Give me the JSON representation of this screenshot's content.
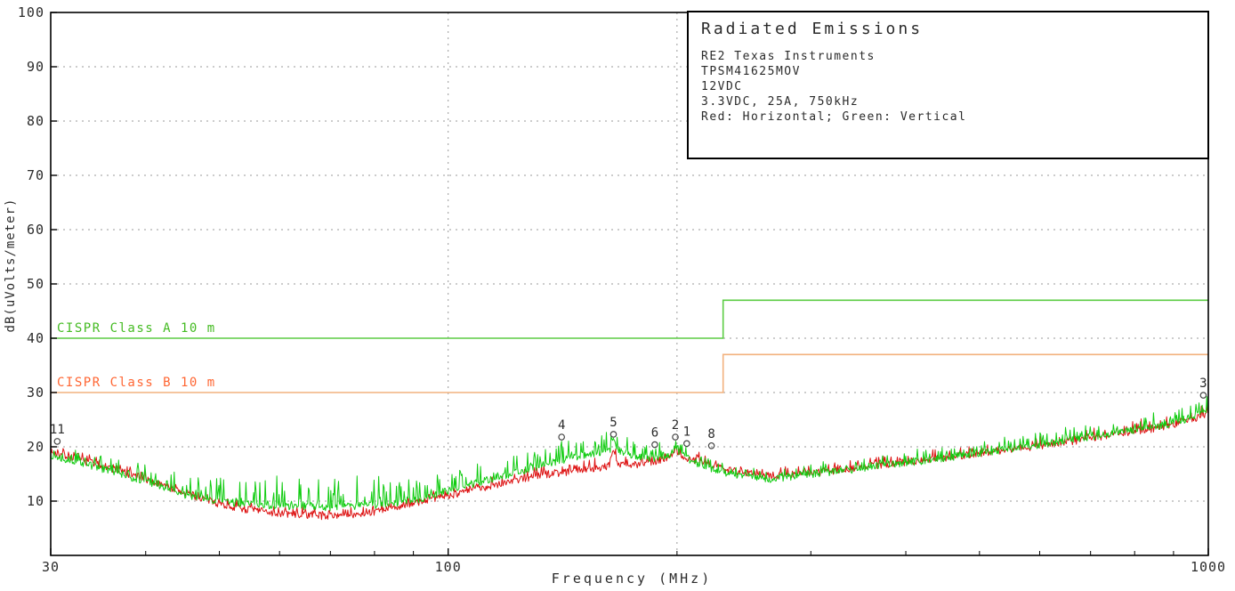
{
  "title_box": {
    "title": "Radiated Emissions",
    "lines": [
      "RE2 Texas Instruments",
      "TPSM41625MOV",
      "12VDC",
      "3.3VDC, 25A, 750kHz",
      "Red: Horizontal; Green: Vertical"
    ]
  },
  "chart_data": {
    "type": "line",
    "title": "Radiated Emissions",
    "xlabel": "Frequency (MHz)",
    "ylabel": "dB(uVolts/meter)",
    "x_scale": "log",
    "xlim": [
      30,
      1000
    ],
    "ylim": [
      0,
      100
    ],
    "x_ticks_major": [
      30,
      100,
      1000
    ],
    "x_tick_labels": [
      "30",
      "100",
      "1000"
    ],
    "x_ticks_minor": [
      40,
      50,
      60,
      70,
      80,
      90,
      200,
      300,
      400,
      500,
      600,
      700,
      800,
      900
    ],
    "y_ticks": [
      10,
      20,
      30,
      40,
      50,
      60,
      70,
      80,
      90,
      100
    ],
    "x_gridlines": [
      100,
      200
    ],
    "grid_on": true,
    "legend_position": "top-right-box",
    "colors": {
      "grid": "#9a9a9a",
      "axis": "#000000",
      "text": "#2b2b2b",
      "background": "#ffffff",
      "marker": "#444444"
    },
    "limit_lines": [
      {
        "label": "CISPR Class A 10 m",
        "line_color": "#5ccc44",
        "label_color": "#44bb22",
        "segments": [
          {
            "from": 30,
            "to": 230,
            "db": 40
          },
          {
            "from": 230,
            "to": 1000,
            "db": 47
          }
        ]
      },
      {
        "label": "CISPR Class B 10 m",
        "line_color": "#f2b27e",
        "label_color": "#ff6633",
        "segments": [
          {
            "from": 30,
            "to": 230,
            "db": 30
          },
          {
            "from": 230,
            "to": 1000,
            "db": 37
          }
        ]
      }
    ],
    "series": [
      {
        "name": "Horizontal",
        "color": "#dd1111",
        "envelope": [
          [
            30,
            19.0
          ],
          [
            35,
            16.5
          ],
          [
            40,
            14.0
          ],
          [
            45,
            11.5
          ],
          [
            50,
            9.5
          ],
          [
            55,
            8.3
          ],
          [
            60,
            7.7
          ],
          [
            68,
            7.3
          ],
          [
            75,
            7.5
          ],
          [
            82,
            8.2
          ],
          [
            90,
            9.6
          ],
          [
            100,
            11.0
          ],
          [
            115,
            13.0
          ],
          [
            130,
            14.6
          ],
          [
            145,
            15.5
          ],
          [
            158,
            16.2
          ],
          [
            163,
            16.5
          ],
          [
            165,
            19.5
          ],
          [
            167,
            16.8
          ],
          [
            175,
            16.6
          ],
          [
            185,
            17.0
          ],
          [
            196,
            18.3
          ],
          [
            199,
            19.8
          ],
          [
            202,
            18.5
          ],
          [
            210,
            17.4
          ],
          [
            220,
            16.8
          ],
          [
            232,
            15.8
          ],
          [
            250,
            15.0
          ],
          [
            270,
            14.7
          ],
          [
            300,
            15.2
          ],
          [
            340,
            16.0
          ],
          [
            380,
            16.8
          ],
          [
            430,
            17.7
          ],
          [
            480,
            18.5
          ],
          [
            540,
            19.4
          ],
          [
            600,
            20.2
          ],
          [
            660,
            21.0
          ],
          [
            720,
            21.9
          ],
          [
            780,
            22.6
          ],
          [
            840,
            23.3
          ],
          [
            900,
            24.2
          ],
          [
            950,
            25.0
          ],
          [
            1000,
            26.0
          ]
        ],
        "noise": [
          [
            30,
            1.2
          ],
          [
            50,
            1.0
          ],
          [
            80,
            1.0
          ],
          [
            100,
            1.2
          ],
          [
            140,
            1.6
          ],
          [
            170,
            1.6
          ],
          [
            200,
            1.4
          ],
          [
            300,
            1.2
          ],
          [
            500,
            1.4
          ],
          [
            700,
            1.6
          ],
          [
            900,
            1.8
          ],
          [
            1000,
            2.0
          ]
        ]
      },
      {
        "name": "Vertical",
        "color": "#11cc11",
        "envelope": [
          [
            30,
            18.5
          ],
          [
            35,
            16.0
          ],
          [
            40,
            13.6
          ],
          [
            45,
            11.2
          ],
          [
            50,
            10.0
          ],
          [
            55,
            9.4
          ],
          [
            62,
            9.0
          ],
          [
            70,
            8.9
          ],
          [
            78,
            9.2
          ],
          [
            85,
            9.6
          ],
          [
            92,
            10.3
          ],
          [
            100,
            12.0
          ],
          [
            112,
            13.8
          ],
          [
            125,
            15.6
          ],
          [
            138,
            17.2
          ],
          [
            150,
            18.4
          ],
          [
            158,
            19.0
          ],
          [
            163,
            19.2
          ],
          [
            165,
            21.5
          ],
          [
            167,
            19.4
          ],
          [
            175,
            18.4
          ],
          [
            185,
            17.9
          ],
          [
            196,
            18.6
          ],
          [
            199,
            20.3
          ],
          [
            202,
            18.8
          ],
          [
            210,
            17.2
          ],
          [
            220,
            16.2
          ],
          [
            232,
            15.0
          ],
          [
            250,
            14.3
          ],
          [
            270,
            14.1
          ],
          [
            300,
            14.9
          ],
          [
            340,
            15.8
          ],
          [
            380,
            16.7
          ],
          [
            430,
            17.6
          ],
          [
            480,
            18.5
          ],
          [
            540,
            19.5
          ],
          [
            600,
            20.4
          ],
          [
            660,
            21.3
          ],
          [
            720,
            22.1
          ],
          [
            780,
            22.8
          ],
          [
            840,
            23.5
          ],
          [
            900,
            24.4
          ],
          [
            950,
            25.4
          ],
          [
            1000,
            26.6
          ]
        ],
        "noise": [
          [
            30,
            1.5
          ],
          [
            42,
            3.0
          ],
          [
            50,
            4.5
          ],
          [
            60,
            5.2
          ],
          [
            70,
            5.2
          ],
          [
            80,
            5.0
          ],
          [
            88,
            4.2
          ],
          [
            95,
            3.2
          ],
          [
            105,
            2.8
          ],
          [
            120,
            3.2
          ],
          [
            140,
            3.4
          ],
          [
            160,
            3.2
          ],
          [
            180,
            2.4
          ],
          [
            200,
            2.0
          ],
          [
            240,
            1.6
          ],
          [
            300,
            1.5
          ],
          [
            450,
            1.8
          ],
          [
            600,
            2.0
          ],
          [
            800,
            2.2
          ],
          [
            950,
            3.0
          ],
          [
            1000,
            3.2
          ]
        ]
      }
    ],
    "markers": [
      {
        "label": "11",
        "f": 30.6,
        "db": 21.0
      },
      {
        "label": "4",
        "f": 141,
        "db": 21.8
      },
      {
        "label": "5",
        "f": 165,
        "db": 22.3
      },
      {
        "label": "6",
        "f": 187,
        "db": 20.4
      },
      {
        "label": "2",
        "f": 199,
        "db": 21.8
      },
      {
        "label": "1",
        "f": 206,
        "db": 20.6
      },
      {
        "label": "8",
        "f": 222,
        "db": 20.2
      },
      {
        "label": "3",
        "f": 985,
        "db": 29.5
      }
    ]
  }
}
